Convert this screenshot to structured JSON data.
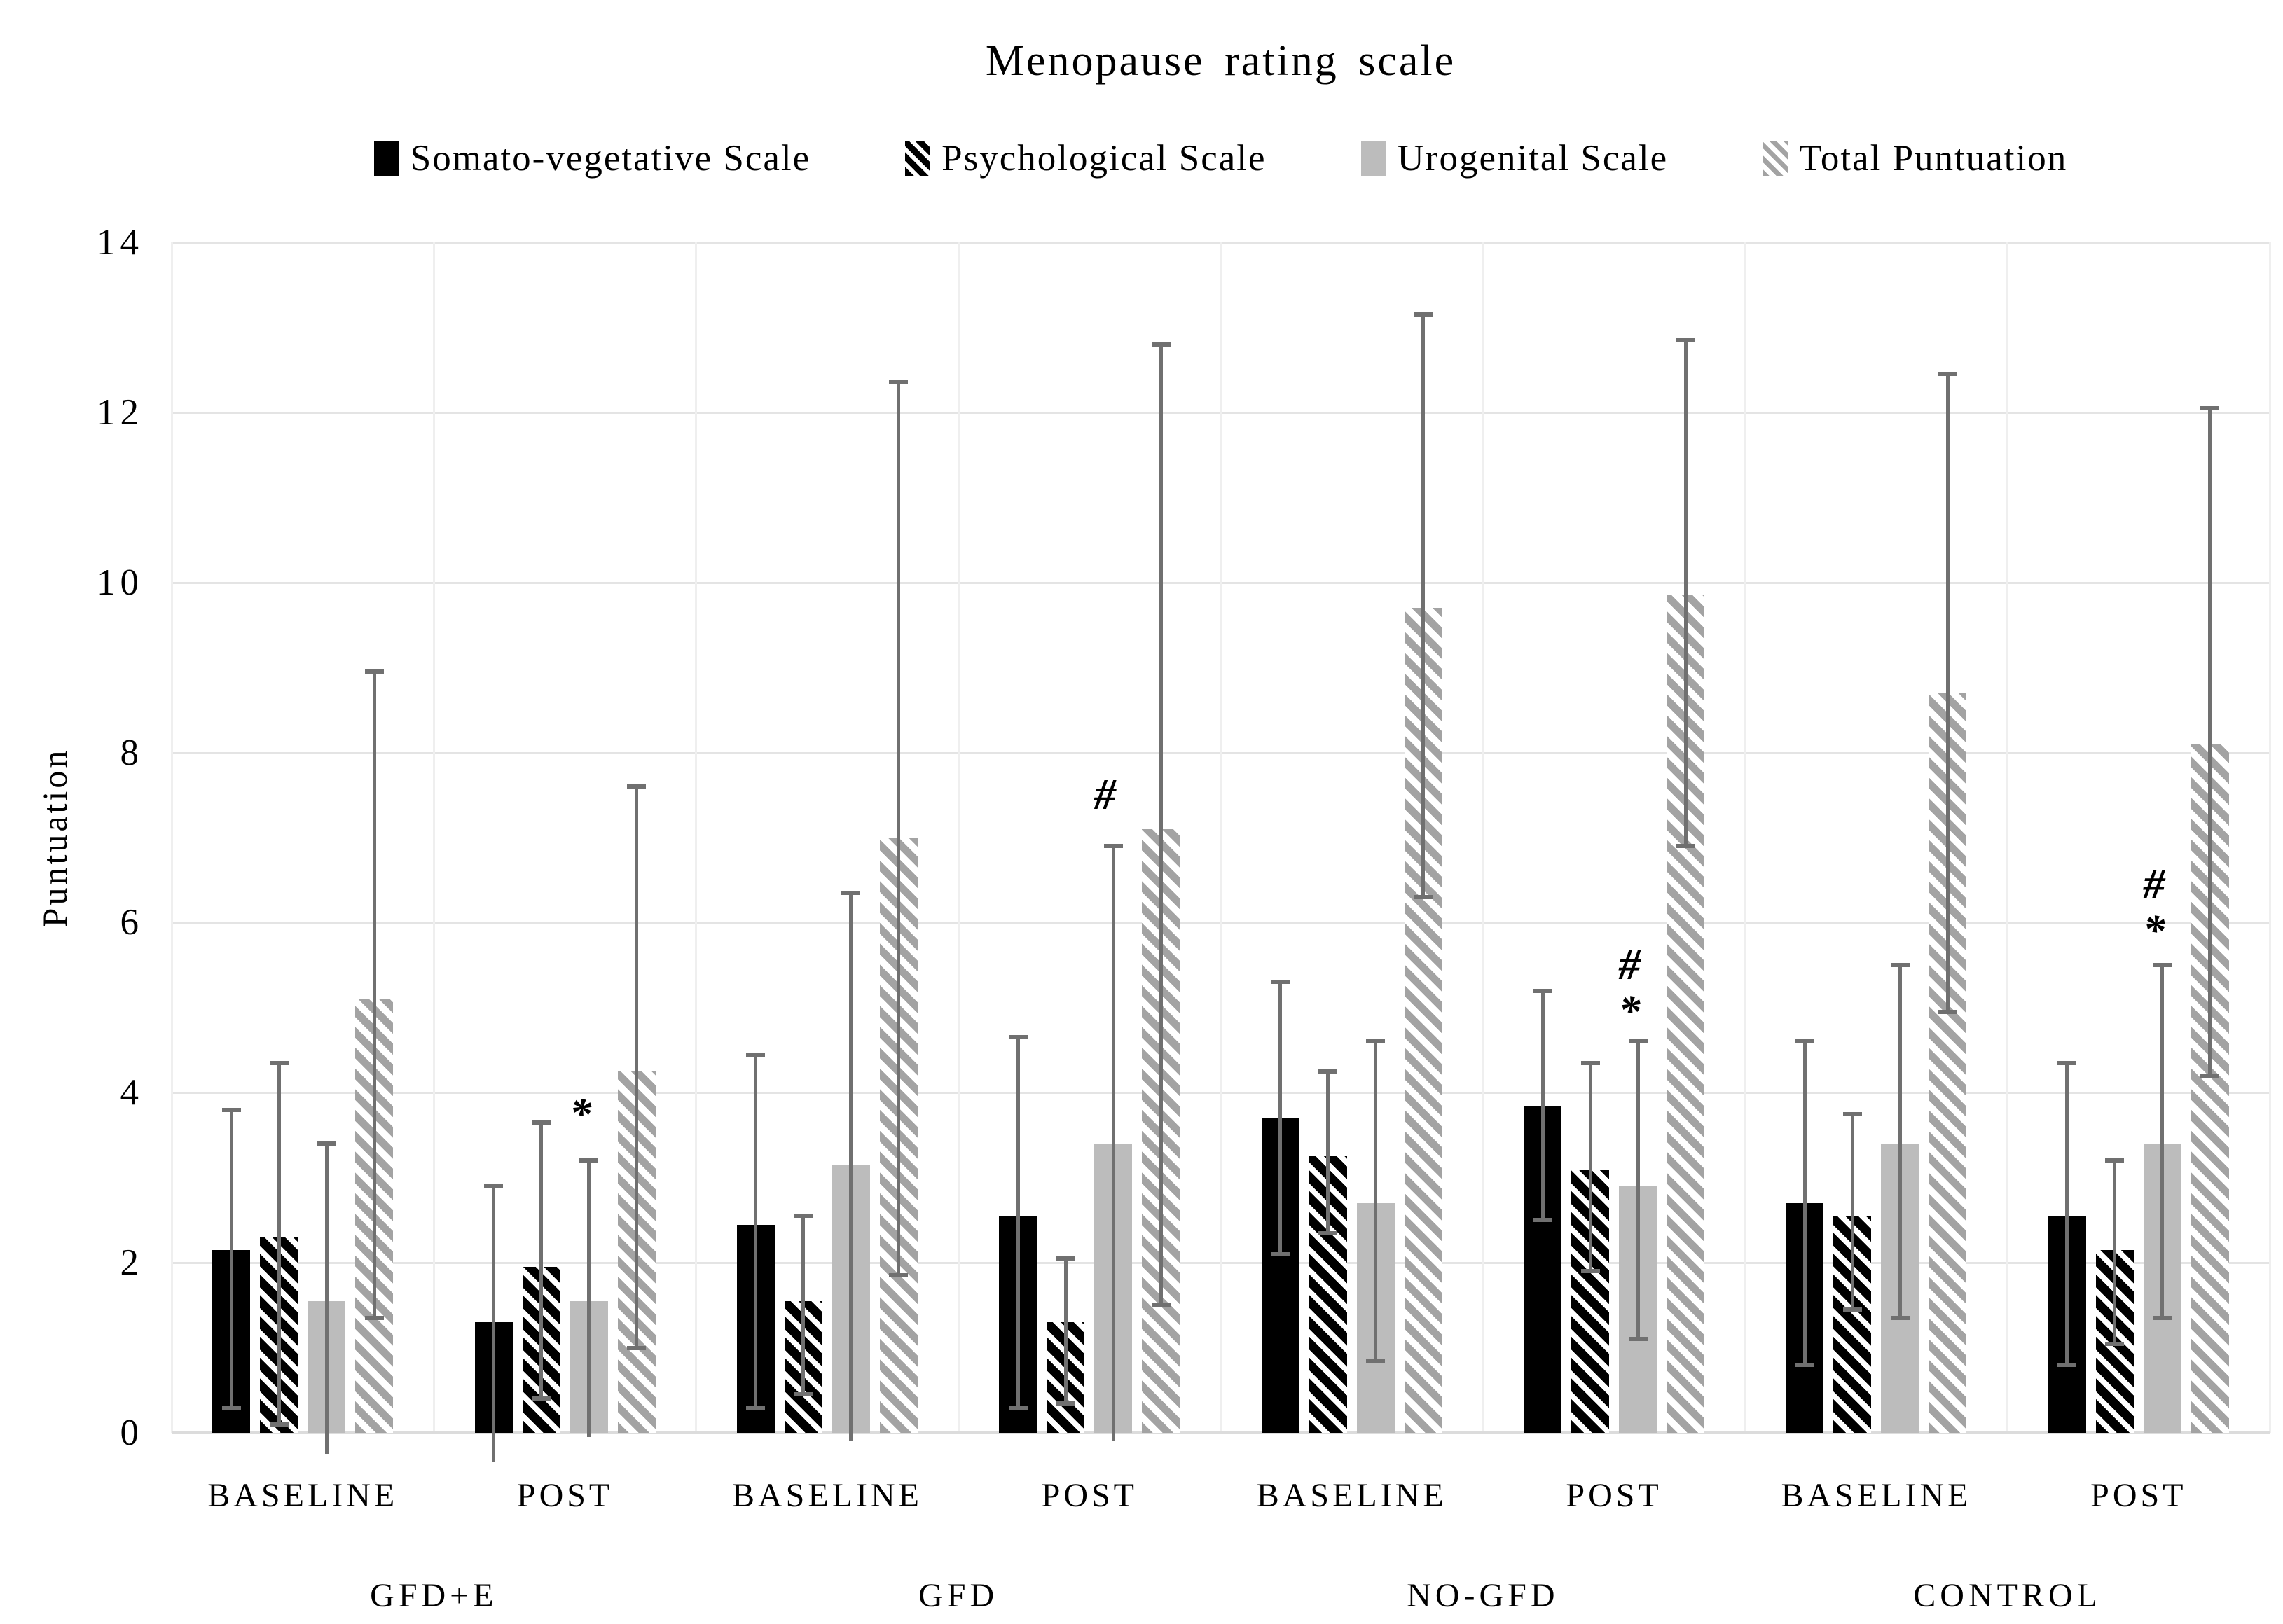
{
  "title": "Menopause rating scale",
  "colors": {
    "series_black": "#000000",
    "series_solid_gray": "#bcbcbc",
    "series_hatch_gray": "#a3a3a3",
    "error_bar": "#707070",
    "gridline": "#e4e4e4",
    "text": "#000000"
  },
  "chart_data": {
    "type": "bar",
    "title": "Menopause rating scale",
    "ylabel": "Puntuation",
    "xlabel": "",
    "ylim": [
      0,
      14
    ],
    "ytick_step": 2,
    "yticks": [
      0,
      2,
      4,
      6,
      8,
      10,
      12,
      14
    ],
    "grid": true,
    "legend_position": "top",
    "categories": [
      "BASELINE",
      "POST",
      "BASELINE",
      "POST",
      "BASELINE",
      "POST",
      "BASELINE",
      "POST"
    ],
    "condition_groups": [
      {
        "label": "GFD+E",
        "start": 0,
        "end": 1
      },
      {
        "label": "GFD",
        "start": 2,
        "end": 3
      },
      {
        "label": "NO-GFD",
        "start": 4,
        "end": 5
      },
      {
        "label": "CONTROL",
        "start": 6,
        "end": 7
      }
    ],
    "series": [
      {
        "name": "Somato-vegetative Scale",
        "style": "solid-black",
        "values": [
          2.15,
          1.3,
          2.45,
          2.55,
          3.7,
          3.85,
          2.7,
          2.55
        ],
        "err_low": [
          0.3,
          -0.35,
          0.3,
          0.3,
          2.1,
          2.5,
          0.8,
          0.8
        ],
        "err_high": [
          3.8,
          2.9,
          4.45,
          4.65,
          5.3,
          5.2,
          4.6,
          4.35
        ]
      },
      {
        "name": "Psychological Scale",
        "style": "hatch-black",
        "values": [
          2.3,
          1.95,
          1.55,
          1.3,
          3.25,
          3.1,
          2.55,
          2.15
        ],
        "err_low": [
          0.1,
          0.4,
          0.45,
          0.35,
          2.35,
          1.9,
          1.45,
          1.05
        ],
        "err_high": [
          4.35,
          3.65,
          2.55,
          2.05,
          4.25,
          4.35,
          3.75,
          3.2
        ]
      },
      {
        "name": "Urogenital Scale",
        "style": "solid-gray",
        "values": [
          1.55,
          1.55,
          3.15,
          3.4,
          2.7,
          2.9,
          3.4,
          3.4
        ],
        "err_low": [
          -0.25,
          -0.05,
          -0.1,
          -0.1,
          0.85,
          1.1,
          1.35,
          1.35
        ],
        "err_high": [
          3.4,
          3.2,
          6.35,
          6.9,
          4.6,
          4.6,
          5.5,
          5.5
        ]
      },
      {
        "name": "Total Puntuation",
        "style": "hatch-gray",
        "values": [
          5.1,
          4.25,
          7.0,
          7.1,
          9.7,
          9.85,
          8.7,
          8.1
        ],
        "err_low": [
          1.35,
          1.0,
          1.85,
          1.5,
          6.3,
          6.9,
          4.95,
          4.2
        ],
        "err_high": [
          8.95,
          7.6,
          12.35,
          12.8,
          13.15,
          12.85,
          12.45,
          12.05
        ]
      }
    ],
    "annotations": [
      {
        "category_index": 1,
        "over_series": "Urogenital Scale",
        "symbols": [
          "*"
        ],
        "y": 3.75
      },
      {
        "category_index": 3,
        "over_series": "Urogenital Scale",
        "symbols": [
          "#"
        ],
        "y": 7.5
      },
      {
        "category_index": 5,
        "over_series": "Urogenital Scale",
        "symbols": [
          "#",
          "*"
        ],
        "y": 5.5
      },
      {
        "category_index": 7,
        "over_series": "Urogenital Scale",
        "symbols": [
          "#",
          "*"
        ],
        "y": 6.45
      }
    ]
  }
}
